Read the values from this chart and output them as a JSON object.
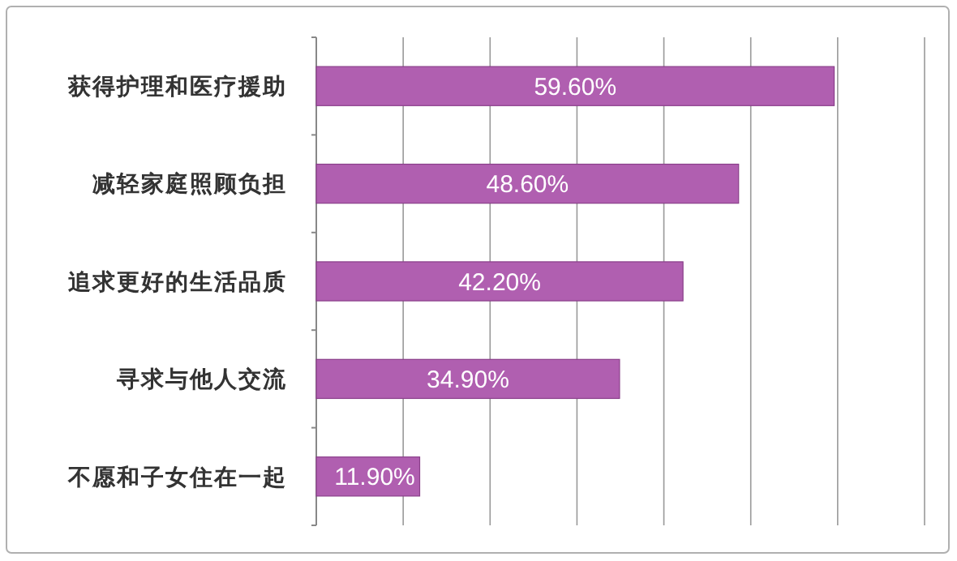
{
  "chart_data": {
    "type": "bar",
    "orientation": "horizontal",
    "categories": [
      "获得护理和医疗援助",
      "减轻家庭照顾负担",
      "追求更好的生活品质",
      "寻求与他人交流",
      "不愿和子女住在一起"
    ],
    "values": [
      59.6,
      48.6,
      42.2,
      34.9,
      11.9
    ],
    "value_labels": [
      "59.60%",
      "48.60%",
      "42.20%",
      "34.90%",
      "11.90%"
    ],
    "color": "#b05fb0",
    "xlim": [
      0,
      70
    ],
    "xticks": [
      {
        "value": 0,
        "label": null
      },
      {
        "value": 10,
        "label": null
      },
      {
        "value": 20,
        "label": null
      },
      {
        "value": 30,
        "label": null
      },
      {
        "value": 40,
        "label": null
      },
      {
        "value": 50,
        "label": null
      },
      {
        "value": 60,
        "label": null
      },
      {
        "value": 70,
        "label": null
      }
    ],
    "tick_labels": "y",
    "grid": "x"
  }
}
